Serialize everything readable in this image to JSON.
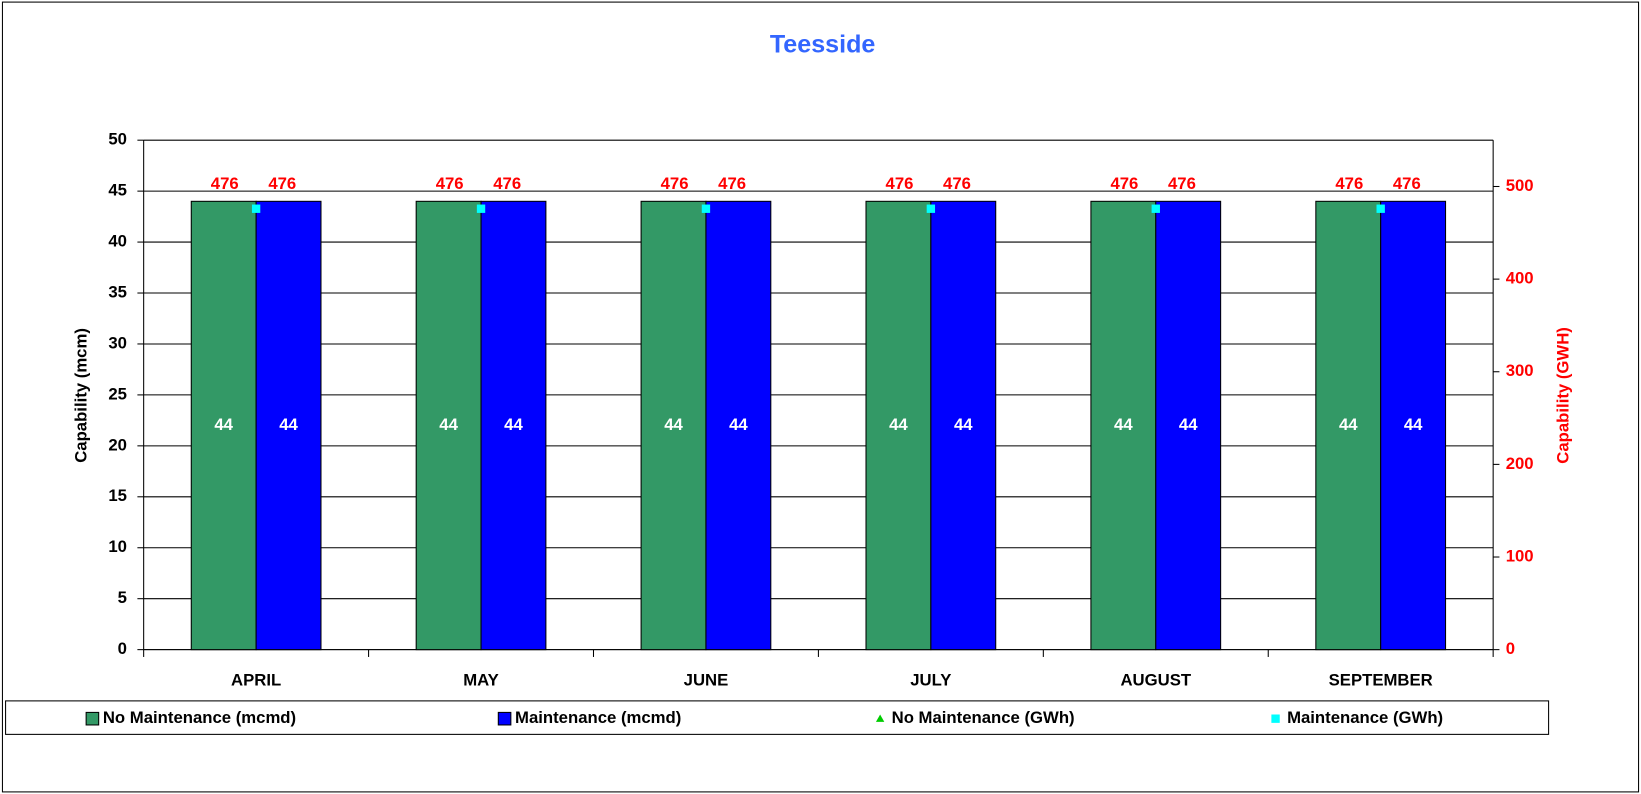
{
  "chart_data": {
    "type": "bar",
    "title": "Teesside",
    "categories": [
      "APRIL",
      "MAY",
      "JUNE",
      "JULY",
      "AUGUST",
      "SEPTEMBER"
    ],
    "series": [
      {
        "name": "No Maintenance (mcmd)",
        "color": "#339966",
        "values": [
          44,
          44,
          44,
          44,
          44,
          44
        ]
      },
      {
        "name": "Maintenance (mcmd)",
        "color": "#0000ff",
        "values": [
          44,
          44,
          44,
          44,
          44,
          44
        ]
      },
      {
        "name": "No Maintenance (GWh)",
        "color": "#00cc00",
        "axis": "y2",
        "marker": "triangle",
        "values": [
          476,
          476,
          476,
          476,
          476,
          476
        ]
      },
      {
        "name": "Maintenance (GWh)",
        "color": "#00ffff",
        "axis": "y2",
        "marker": "square",
        "values": [
          476,
          476,
          476,
          476,
          476,
          476
        ]
      }
    ],
    "ylabel": "Capability (mcm)",
    "y2label": "Capability (GWH)",
    "ylim": [
      0,
      50
    ],
    "yticks": [
      0,
      5,
      10,
      15,
      20,
      25,
      30,
      35,
      40,
      45,
      50
    ],
    "y2lim": [
      0,
      550
    ],
    "y2ticks": [
      0,
      100,
      200,
      300,
      400,
      500
    ],
    "grid": true,
    "legend": "bottom"
  }
}
